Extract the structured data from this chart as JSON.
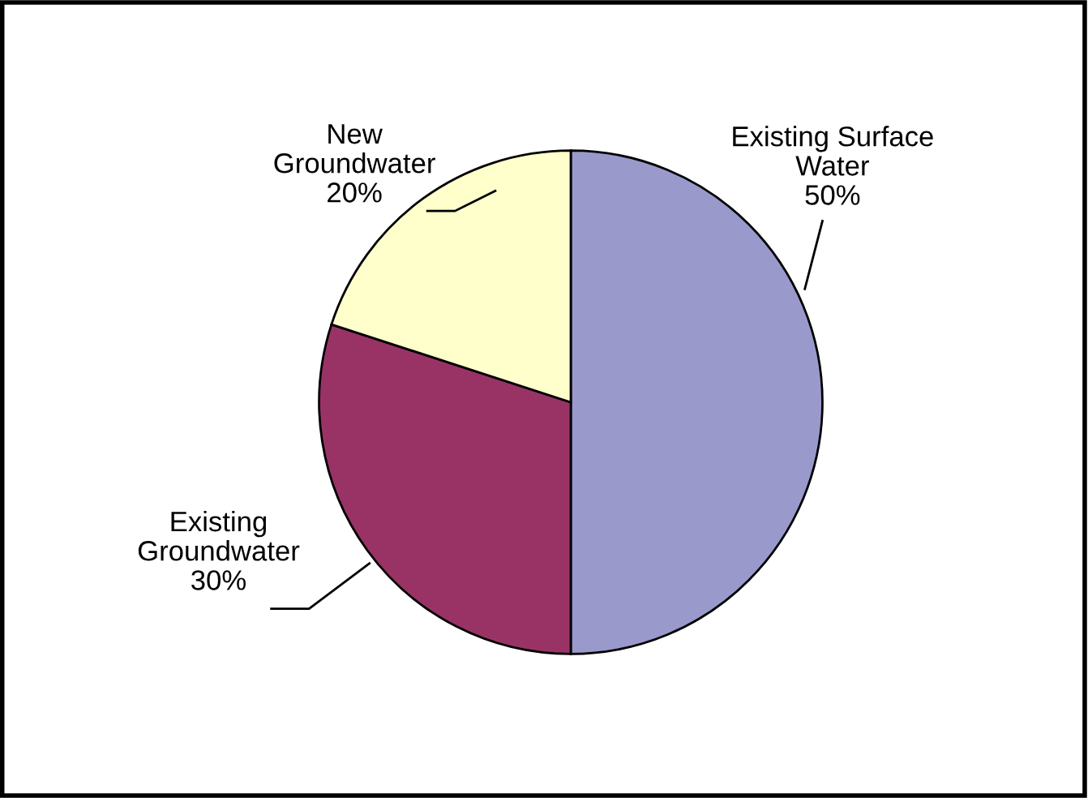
{
  "chart_data": {
    "type": "pie",
    "categories": [
      "Existing Surface\nWater",
      "Existing\nGroundwater",
      "New\nGroundwater"
    ],
    "values": [
      50,
      30,
      20
    ],
    "colors": [
      "#9999cc",
      "#993366",
      "#ffffcc"
    ],
    "value_labels": [
      "50%",
      "30%",
      "20%"
    ]
  }
}
